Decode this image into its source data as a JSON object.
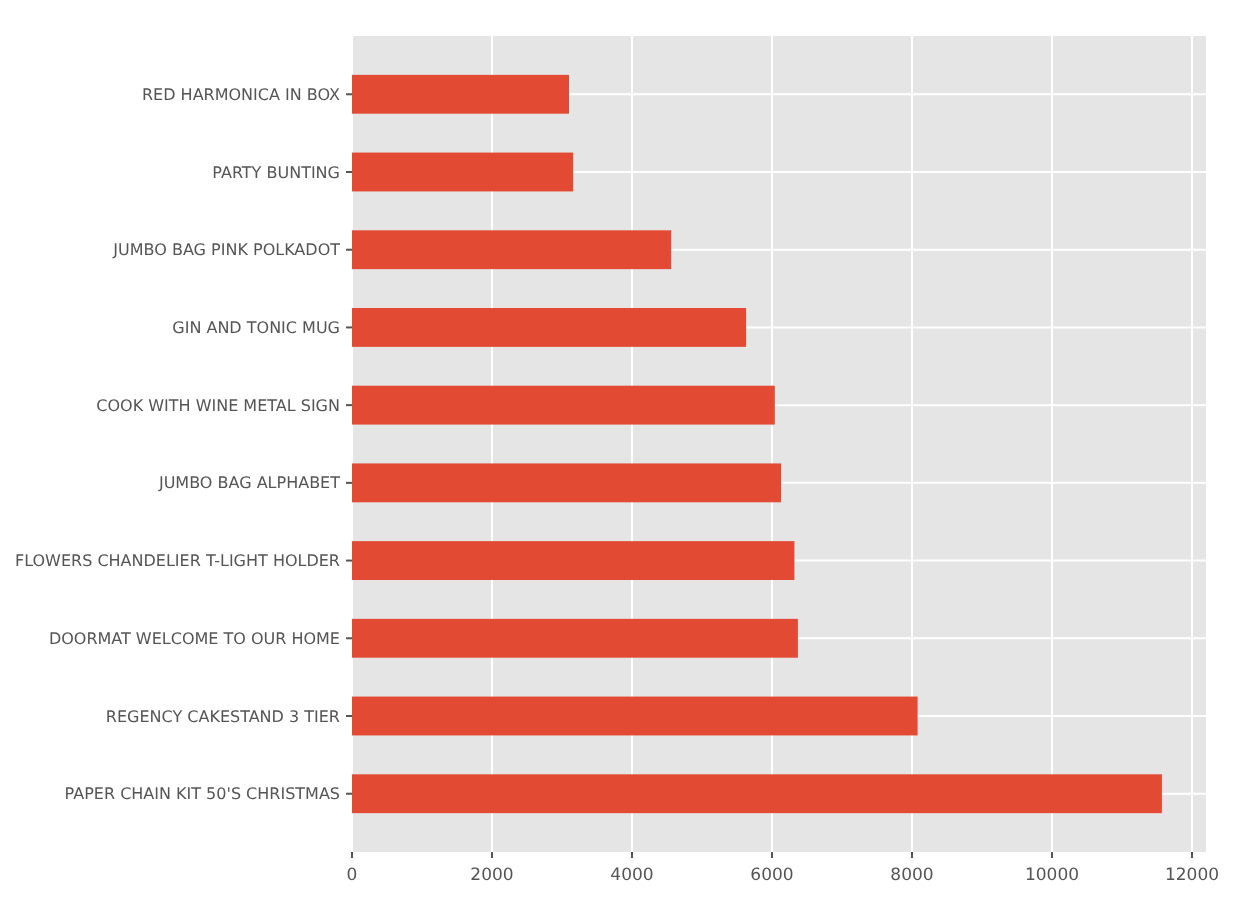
{
  "chart_data": {
    "type": "bar",
    "orientation": "horizontal",
    "categories": [
      "RED HARMONICA IN BOX",
      "PARTY BUNTING",
      "JUMBO BAG PINK POLKADOT",
      "GIN AND TONIC MUG",
      "COOK WITH WINE METAL SIGN",
      "JUMBO BAG ALPHABET",
      "FLOWERS CHANDELIER T-LIGHT HOLDER",
      "DOORMAT WELCOME TO OUR HOME",
      "REGENCY CAKESTAND 3 TIER",
      "PAPER CHAIN KIT 50'S CHRISTMAS"
    ],
    "values": [
      3100,
      3160,
      4560,
      5630,
      6040,
      6130,
      6320,
      6370,
      8080,
      11570
    ],
    "color": "#e24a33",
    "xlim": [
      0,
      12200
    ],
    "xticks": [
      0,
      2000,
      4000,
      6000,
      8000,
      10000,
      12000
    ],
    "grid": true
  }
}
